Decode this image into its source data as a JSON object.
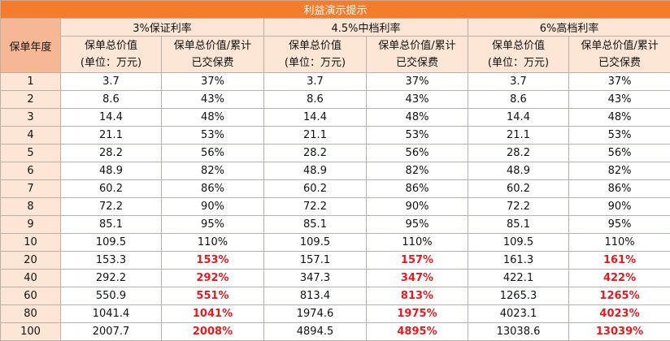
{
  "title": "利益演示提示",
  "year_header": "保单年度",
  "scenarios": [
    "3%保证利率",
    "4.5%中档利率",
    "6%高档利率"
  ],
  "sub_headers": {
    "value_line1": "保单总价值",
    "value_line2": "(单位：万元)",
    "ratio_line1": "保单总价值/累计",
    "ratio_line2": "已交保费"
  },
  "colors": {
    "title_bg": "#f47c2a",
    "header_bg": "#fde6d6",
    "year_header_bg": "#f6b894",
    "highlight_text": "#e8191f"
  },
  "rows": [
    {
      "year": "1",
      "v1": "3.7",
      "r1": "37%",
      "v2": "3.7",
      "r2": "37%",
      "v3": "3.7",
      "r3": "37%",
      "highlight": false
    },
    {
      "year": "2",
      "v1": "8.6",
      "r1": "43%",
      "v2": "8.6",
      "r2": "43%",
      "v3": "8.6",
      "r3": "43%",
      "highlight": false
    },
    {
      "year": "3",
      "v1": "14.4",
      "r1": "48%",
      "v2": "14.4",
      "r2": "48%",
      "v3": "14.4",
      "r3": "48%",
      "highlight": false
    },
    {
      "year": "4",
      "v1": "21.1",
      "r1": "53%",
      "v2": "21.1",
      "r2": "53%",
      "v3": "21.1",
      "r3": "53%",
      "highlight": false
    },
    {
      "year": "5",
      "v1": "28.2",
      "r1": "56%",
      "v2": "28.2",
      "r2": "56%",
      "v3": "28.2",
      "r3": "56%",
      "highlight": false
    },
    {
      "year": "6",
      "v1": "48.9",
      "r1": "82%",
      "v2": "48.9",
      "r2": "82%",
      "v3": "48.9",
      "r3": "82%",
      "highlight": false
    },
    {
      "year": "7",
      "v1": "60.2",
      "r1": "86%",
      "v2": "60.2",
      "r2": "86%",
      "v3": "60.2",
      "r3": "86%",
      "highlight": false
    },
    {
      "year": "8",
      "v1": "72.2",
      "r1": "90%",
      "v2": "72.2",
      "r2": "90%",
      "v3": "72.2",
      "r3": "90%",
      "highlight": false
    },
    {
      "year": "9",
      "v1": "85.1",
      "r1": "95%",
      "v2": "85.1",
      "r2": "95%",
      "v3": "85.1",
      "r3": "95%",
      "highlight": false
    },
    {
      "year": "10",
      "v1": "109.5",
      "r1": "110%",
      "v2": "109.5",
      "r2": "110%",
      "v3": "109.5",
      "r3": "110%",
      "highlight": false
    },
    {
      "year": "20",
      "v1": "153.3",
      "r1": "153%",
      "v2": "157.1",
      "r2": "157%",
      "v3": "161.3",
      "r3": "161%",
      "highlight": true
    },
    {
      "year": "40",
      "v1": "292.2",
      "r1": "292%",
      "v2": "347.3",
      "r2": "347%",
      "v3": "422.1",
      "r3": "422%",
      "highlight": true
    },
    {
      "year": "60",
      "v1": "550.9",
      "r1": "551%",
      "v2": "813.4",
      "r2": "813%",
      "v3": "1265.3",
      "r3": "1265%",
      "highlight": true
    },
    {
      "year": "80",
      "v1": "1041.4",
      "r1": "1041%",
      "v2": "1974.6",
      "r2": "1975%",
      "v3": "4023.1",
      "r3": "4023%",
      "highlight": true
    },
    {
      "year": "100",
      "v1": "2007.7",
      "r1": "2008%",
      "v2": "4894.5",
      "r2": "4895%",
      "v3": "13038.6",
      "r3": "13039%",
      "highlight": true
    }
  ]
}
